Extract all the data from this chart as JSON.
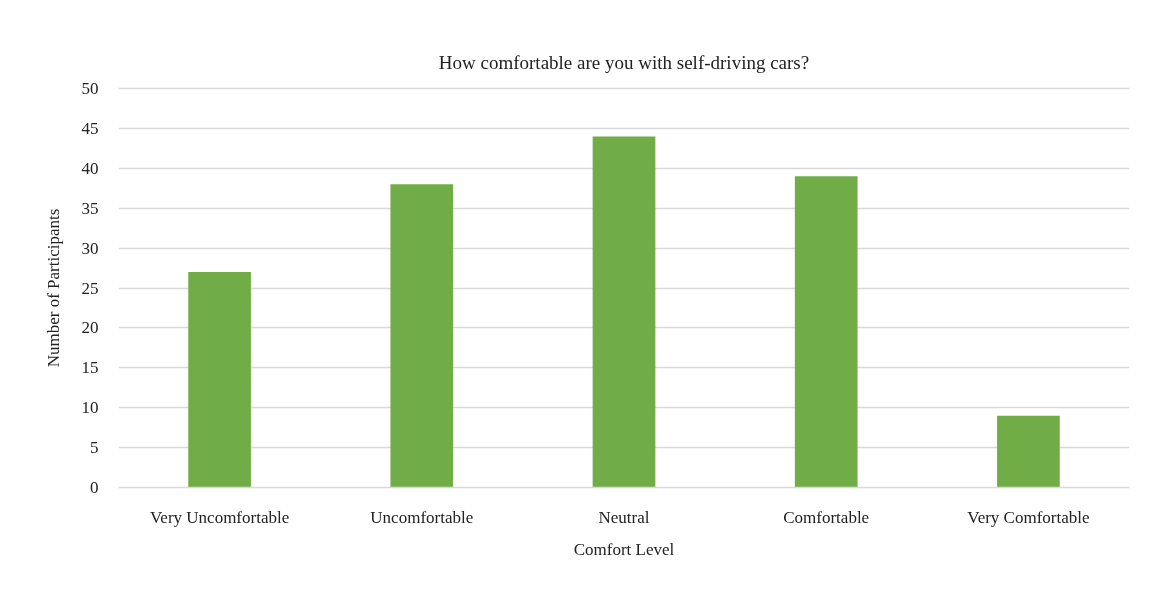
{
  "chart_data": {
    "type": "bar",
    "title": "How comfortable are you with self-driving cars?",
    "xlabel": "Comfort Level",
    "ylabel": "Number of Participants",
    "categories": [
      "Very Uncomfortable",
      "Uncomfortable",
      "Neutral",
      "Comfortable",
      "Very Comfortable"
    ],
    "values": [
      27,
      38,
      44,
      39,
      9
    ],
    "color": "#70ad47",
    "ylim": [
      0,
      50
    ],
    "yticks": [
      0,
      5,
      10,
      15,
      20,
      25,
      30,
      35,
      40,
      45,
      50
    ],
    "grid": "y"
  }
}
